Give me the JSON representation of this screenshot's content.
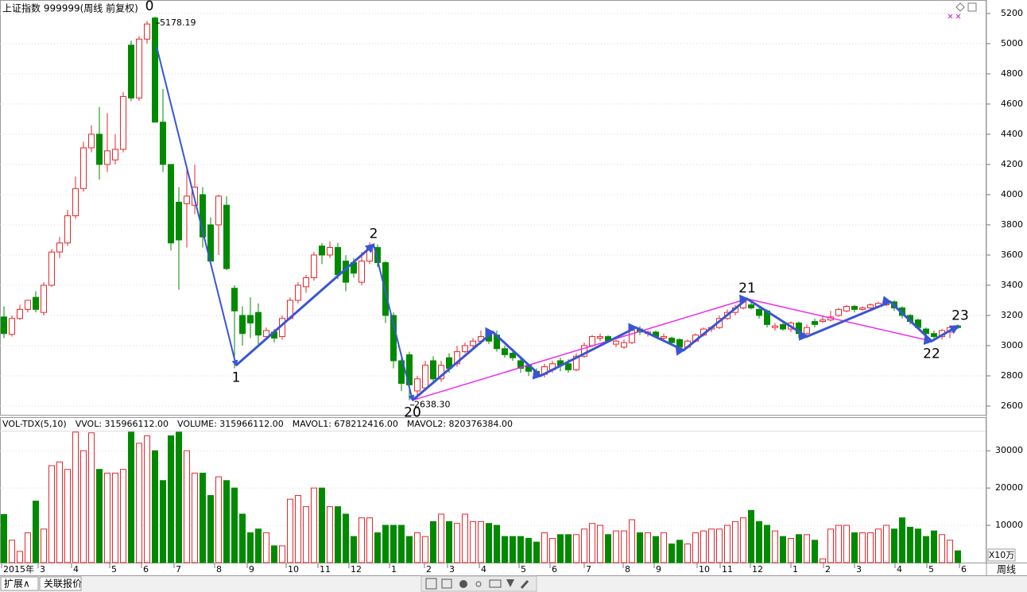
{
  "header": {
    "title": "上证指数 999999(周线 前复权)"
  },
  "volume_header": {
    "items": [
      {
        "label": "VOL-TDX(5,10)",
        "color": "#000000"
      },
      {
        "label": "VVOL: 315966112.00",
        "color": "#000000"
      },
      {
        "label": "VOLUME: 315966112.00",
        "color": "#d81bd8"
      },
      {
        "label": "MAVOL1: 678212416.00",
        "color": "#d81bd8"
      },
      {
        "label": "MAVOL2: 820376384.00",
        "color": "#808080"
      }
    ]
  },
  "tabs": [
    "扩展∧",
    "关联报价"
  ],
  "chart_data": {
    "type": "candlestick",
    "up_color": "#e8262b",
    "down_color": "#008a00",
    "grid": true,
    "ylim": [
      2542,
      5289
    ],
    "yticks": [
      2600,
      2800,
      3000,
      3200,
      3400,
      3600,
      3800,
      4000,
      4200,
      4400,
      4600,
      4800,
      5000,
      5200
    ],
    "vol_ylim": [
      0,
      39000
    ],
    "vol_yticks": [
      10000,
      20000,
      30000
    ],
    "vol_unit": "X10万",
    "period": "周线",
    "candles": [
      [
        3190,
        3260,
        3050,
        3080
      ],
      [
        3075,
        3200,
        3060,
        3180
      ],
      [
        3180,
        3270,
        3170,
        3240
      ],
      [
        3240,
        3300,
        3220,
        3300
      ],
      [
        3320,
        3360,
        3220,
        3240
      ],
      [
        3220,
        3420,
        3200,
        3400
      ],
      [
        3400,
        3640,
        3390,
        3620
      ],
      [
        3620,
        3720,
        3580,
        3680
      ],
      [
        3680,
        3900,
        3660,
        3860
      ],
      [
        3860,
        4120,
        3840,
        4040
      ],
      [
        4040,
        4350,
        4020,
        4310
      ],
      [
        4310,
        4460,
        4280,
        4400
      ],
      [
        4400,
        4580,
        4100,
        4200
      ],
      [
        4200,
        4540,
        4150,
        4290
      ],
      [
        4230,
        4400,
        4200,
        4300
      ],
      [
        4300,
        4680,
        4280,
        4650
      ],
      [
        4990,
        5020,
        4620,
        4640
      ],
      [
        4640,
        5050,
        4620,
        5030
      ],
      [
        5030,
        5150,
        5000,
        5130
      ],
      [
        5170,
        5178.19,
        4480,
        4480
      ],
      [
        4480,
        4700,
        4150,
        4200
      ],
      [
        4200,
        4200,
        3630,
        3680
      ],
      [
        3950,
        4050,
        3370,
        3700
      ],
      [
        3940,
        4180,
        3650,
        3990
      ],
      [
        3930,
        4200,
        3870,
        4050
      ],
      [
        4000,
        4050,
        3650,
        3720
      ],
      [
        3800,
        3850,
        3550,
        3560
      ],
      [
        3800,
        4000,
        3600,
        3990
      ],
      [
        3930,
        3990,
        3500,
        3510
      ],
      [
        3380,
        3400,
        2850,
        3230
      ],
      [
        3200,
        3260,
        3000,
        3080
      ],
      [
        3200,
        3320,
        3050,
        3150
      ],
      [
        3220,
        3280,
        3010,
        3070
      ],
      [
        3060,
        3120,
        3040,
        3100
      ],
      [
        3090,
        3110,
        3020,
        3050
      ],
      [
        3060,
        3200,
        3040,
        3180
      ],
      [
        3180,
        3320,
        3170,
        3300
      ],
      [
        3300,
        3420,
        3280,
        3400
      ],
      [
        3390,
        3470,
        3350,
        3450
      ],
      [
        3450,
        3620,
        3430,
        3600
      ],
      [
        3660,
        3680,
        3540,
        3600
      ],
      [
        3600,
        3690,
        3580,
        3650
      ],
      [
        3650,
        3680,
        3440,
        3470
      ],
      [
        3560,
        3600,
        3360,
        3420
      ],
      [
        3550,
        3580,
        3450,
        3480
      ],
      [
        3420,
        3620,
        3400,
        3560
      ],
      [
        3560,
        3684,
        3540,
        3650
      ],
      [
        3650,
        3670,
        3520,
        3550
      ],
      [
        3550,
        3560,
        3150,
        3200
      ],
      [
        3200,
        3220,
        2850,
        2900
      ],
      [
        2900,
        2950,
        2700,
        2750
      ],
      [
        2940,
        2960,
        2638.3,
        2740
      ],
      [
        2700,
        2800,
        2650,
        2780
      ],
      [
        2720,
        2900,
        2700,
        2870
      ],
      [
        2900,
        2930,
        2750,
        2780
      ],
      [
        2780,
        2900,
        2760,
        2870
      ],
      [
        2920,
        2950,
        2820,
        2850
      ],
      [
        2880,
        3000,
        2860,
        2960
      ],
      [
        2960,
        3020,
        2950,
        3000
      ],
      [
        3000,
        3050,
        2980,
        3030
      ],
      [
        3030,
        3100,
        3010,
        3060
      ],
      [
        3080,
        3100,
        3010,
        3030
      ],
      [
        3070,
        3100,
        2960,
        2980
      ],
      [
        2980,
        3000,
        2920,
        2940
      ],
      [
        2950,
        2970,
        2900,
        2920
      ],
      [
        2900,
        2920,
        2820,
        2850
      ],
      [
        2870,
        2880,
        2800,
        2830
      ],
      [
        2830,
        2850,
        2800,
        2810
      ],
      [
        2810,
        2880,
        2790,
        2860
      ],
      [
        2840,
        2900,
        2820,
        2880
      ],
      [
        2900,
        2920,
        2830,
        2870
      ],
      [
        2880,
        2910,
        2820,
        2840
      ],
      [
        2840,
        2950,
        2830,
        2930
      ],
      [
        2930,
        3020,
        2920,
        3000
      ],
      [
        3000,
        3070,
        2990,
        3060
      ],
      [
        3050,
        3080,
        3030,
        3060
      ],
      [
        3060,
        3070,
        3020,
        3030
      ],
      [
        3010,
        3040,
        2990,
        3030
      ],
      [
        2990,
        3040,
        2980,
        3020
      ],
      [
        3020,
        3120,
        3010,
        3100
      ],
      [
        3110,
        3130,
        3070,
        3090
      ],
      [
        3080,
        3100,
        3060,
        3090
      ],
      [
        3090,
        3100,
        3050,
        3060
      ],
      [
        3050,
        3080,
        3030,
        3060
      ],
      [
        3050,
        3060,
        3010,
        3020
      ],
      [
        3040,
        3050,
        2970,
        2990
      ],
      [
        2990,
        3040,
        2980,
        3030
      ],
      [
        3030,
        3080,
        3020,
        3070
      ],
      [
        3070,
        3120,
        3060,
        3110
      ],
      [
        3110,
        3130,
        3090,
        3120
      ],
      [
        3120,
        3200,
        3110,
        3180
      ],
      [
        3180,
        3240,
        3170,
        3220
      ],
      [
        3220,
        3270,
        3200,
        3250
      ],
      [
        3250,
        3301,
        3240,
        3290
      ],
      [
        3270,
        3290,
        3240,
        3250
      ],
      [
        3240,
        3250,
        3180,
        3200
      ],
      [
        3230,
        3240,
        3120,
        3140
      ],
      [
        3120,
        3150,
        3100,
        3130
      ],
      [
        3140,
        3160,
        3100,
        3110
      ],
      [
        3110,
        3160,
        3090,
        3150
      ],
      [
        3150,
        3160,
        3050,
        3080
      ],
      [
        3080,
        3140,
        3070,
        3120
      ],
      [
        3160,
        3180,
        3120,
        3140
      ],
      [
        3160,
        3200,
        3150,
        3170
      ],
      [
        3170,
        3230,
        3160,
        3190
      ],
      [
        3200,
        3250,
        3190,
        3240
      ],
      [
        3230,
        3270,
        3220,
        3260
      ],
      [
        3260,
        3270,
        3220,
        3240
      ],
      [
        3240,
        3260,
        3230,
        3250
      ],
      [
        3250,
        3280,
        3240,
        3270
      ],
      [
        3260,
        3290,
        3250,
        3280
      ],
      [
        3270,
        3300,
        3260,
        3290
      ],
      [
        3290,
        3300,
        3230,
        3250
      ],
      [
        3250,
        3260,
        3180,
        3200
      ],
      [
        3200,
        3210,
        3140,
        3160
      ],
      [
        3170,
        3180,
        3110,
        3120
      ],
      [
        3110,
        3120,
        3060,
        3080
      ],
      [
        3080,
        3100,
        3030,
        3060
      ],
      [
        3060,
        3110,
        3040,
        3100
      ],
      [
        3090,
        3130,
        3050,
        3120
      ],
      [
        3130,
        3140,
        3110,
        3120
      ]
    ],
    "volume": [
      12900,
      6000,
      3000,
      8000,
      16500,
      9000,
      26000,
      27000,
      25000,
      35000,
      30000,
      34800,
      25000,
      24000,
      24000,
      25000,
      35000,
      32000,
      34000,
      30000,
      22000,
      34000,
      35000,
      30000,
      24000,
      24000,
      18000,
      23000,
      22000,
      20000,
      13000,
      8000,
      9000,
      8000,
      4500,
      4500,
      17000,
      18000,
      15000,
      20000,
      20000,
      15000,
      15000,
      13000,
      7000,
      12000,
      12000,
      8000,
      10000,
      10000,
      10000,
      7000,
      8000,
      7000,
      11000,
      13000,
      11000,
      10500,
      13000,
      11000,
      11000,
      10500,
      10000,
      7000,
      7000,
      7000,
      6500,
      5500,
      8000,
      6500,
      7500,
      7500,
      7500,
      9000,
      10500,
      10000,
      7500,
      8500,
      8500,
      11500,
      8000,
      8000,
      7000,
      8000,
      5000,
      6000,
      5000,
      8000,
      8500,
      9000,
      9000,
      10000,
      11000,
      12000,
      14000,
      11000,
      10000,
      8500,
      7000,
      6500,
      7500,
      7500,
      6000,
      1000,
      9000,
      10000,
      10000,
      8000,
      8000,
      8000,
      9000,
      10000,
      9000,
      12000,
      9500,
      9000,
      7000,
      8500,
      7500,
      6000,
      3160
    ],
    "x_labels": [
      {
        "label": "2015年",
        "index": -0.3
      },
      {
        "label": "3",
        "index": 4.3
      },
      {
        "label": "4",
        "index": 8.5
      },
      {
        "label": "5",
        "index": 13.3
      },
      {
        "label": "6",
        "index": 17.3
      },
      {
        "label": "7",
        "index": 21.4
      },
      {
        "label": "8",
        "index": 26.5
      },
      {
        "label": "9",
        "index": 30.6
      },
      {
        "label": "10",
        "index": 35.5
      },
      {
        "label": "11",
        "index": 39.5
      },
      {
        "label": "12",
        "index": 43.4
      },
      {
        "label": "1",
        "index": 48.5
      },
      {
        "label": "2",
        "index": 52.9
      },
      {
        "label": "3",
        "index": 55.8
      },
      {
        "label": "4",
        "index": 59.8
      },
      {
        "label": "5",
        "index": 64.8
      },
      {
        "label": "6",
        "index": 68.7
      },
      {
        "label": "7",
        "index": 73
      },
      {
        "label": "8",
        "index": 77.9
      },
      {
        "label": "9",
        "index": 81.8
      },
      {
        "label": "10",
        "index": 87.2
      },
      {
        "label": "11",
        "index": 90.1
      },
      {
        "label": "12",
        "index": 93.9
      },
      {
        "label": "1",
        "index": 99
      },
      {
        "label": "2",
        "index": 103.1
      },
      {
        "label": "3",
        "index": 107
      },
      {
        "label": "4",
        "index": 112.1
      },
      {
        "label": "5",
        "index": 116.1
      },
      {
        "label": "6",
        "index": 120.2
      }
    ],
    "annotations": [
      {
        "candle": 19,
        "label": "5178.19"
      },
      {
        "candle": 51,
        "label": "2638.30"
      }
    ],
    "waves": [
      {
        "color": "#3a55d4",
        "width": 2,
        "points": [
          [
            19.2,
            4980
          ],
          [
            29.2,
            2870
          ]
        ]
      },
      {
        "color": "#3a55d4",
        "width": 3,
        "points": [
          [
            29.2,
            2870
          ],
          [
            46.5,
            3670
          ]
        ]
      },
      {
        "color": "#3a55d4",
        "width": 2,
        "points": [
          [
            46.5,
            3670
          ],
          [
            51.4,
            2638.3
          ]
        ]
      },
      {
        "color": "#ea2bea",
        "width": 1.5,
        "points": [
          [
            51.4,
            2638.3
          ],
          [
            93.5,
            3310
          ]
        ]
      },
      {
        "color": "#ea2bea",
        "width": 1.5,
        "points": [
          [
            93.5,
            3310
          ],
          [
            116.7,
            3030
          ]
        ]
      },
      {
        "color": "#3a55d4",
        "width": 3,
        "points": [
          [
            51.4,
            2638.3
          ],
          [
            61.5,
            3090
          ],
          [
            67.5,
            2800
          ],
          [
            79.5,
            3120
          ],
          [
            85.5,
            2970
          ],
          [
            93.5,
            3310
          ],
          [
            101,
            3060
          ],
          [
            111.5,
            3290
          ],
          [
            116.7,
            3030
          ],
          [
            120,
            3130
          ]
        ]
      }
    ],
    "wave_points": [
      {
        "label": "0",
        "index": 18.3,
        "price": 5178.19,
        "pos": "above"
      },
      {
        "label": "1",
        "index": 29.2,
        "price": 2870,
        "pos": "below"
      },
      {
        "label": "2",
        "index": 46.5,
        "price": 3670,
        "pos": "above"
      },
      {
        "label": "20",
        "index": 51.4,
        "price": 2638.3,
        "pos": "below"
      },
      {
        "label": "21",
        "index": 93.5,
        "price": 3310,
        "pos": "above"
      },
      {
        "label": "22",
        "index": 116.7,
        "price": 3030,
        "pos": "below"
      },
      {
        "label": "23",
        "index": 120.3,
        "price": 3130,
        "pos": "above"
      }
    ]
  }
}
